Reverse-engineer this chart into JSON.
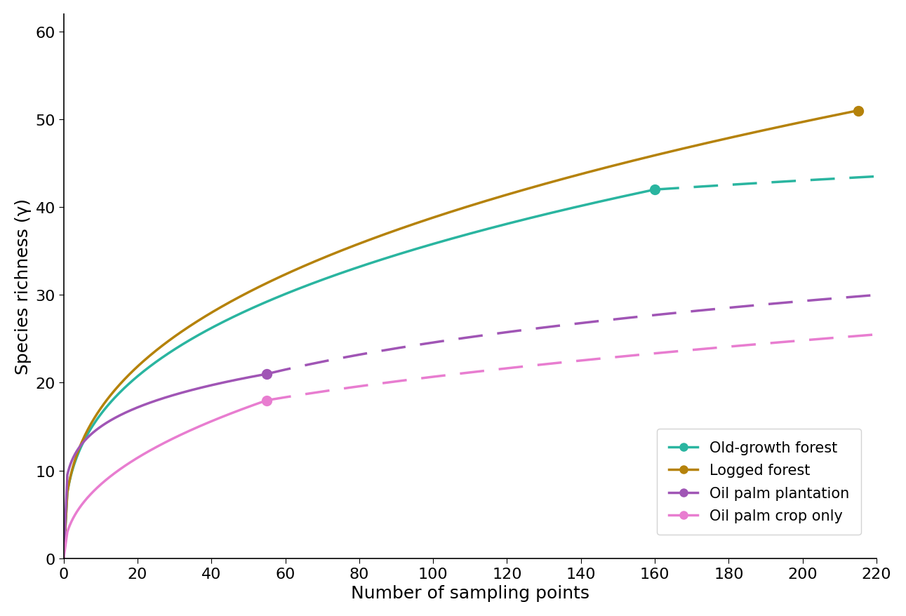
{
  "title": "",
  "xlabel": "Number of sampling points",
  "ylabel": "Species richness (γ)",
  "xlim": [
    0,
    220
  ],
  "ylim": [
    0,
    62
  ],
  "xticks": [
    0,
    20,
    40,
    60,
    80,
    100,
    120,
    140,
    160,
    180,
    200,
    220
  ],
  "yticks": [
    0,
    10,
    20,
    30,
    40,
    50,
    60
  ],
  "series": [
    {
      "label": "Old-growth forest",
      "color": "#2ab5a0",
      "obs_x": 160,
      "obs_y": 42,
      "x0": 1,
      "y0": 7.5,
      "ext_x": 220,
      "ext_y": 43.5,
      "solid_end": 160,
      "dashed": true
    },
    {
      "label": "Logged forest",
      "color": "#b5820a",
      "obs_x": 215,
      "obs_y": 51,
      "x0": 1,
      "y0": 7.5,
      "ext_x": null,
      "ext_y": null,
      "solid_end": 215,
      "dashed": false
    },
    {
      "label": "Oil palm plantation",
      "color": "#a055b5",
      "obs_x": 55,
      "obs_y": 21,
      "x0": 1,
      "y0": 9.5,
      "ext_x": 220,
      "ext_y": 30,
      "solid_end": 55,
      "dashed": true
    },
    {
      "label": "Oil palm crop only",
      "color": "#e87dd0",
      "obs_x": 55,
      "obs_y": 18,
      "x0": 1,
      "y0": 3.0,
      "ext_x": 220,
      "ext_y": 25.5,
      "solid_end": 55,
      "dashed": true
    }
  ],
  "figsize": [
    12.91,
    8.79
  ],
  "dpi": 100,
  "axis_label_fontsize": 18,
  "tick_fontsize": 16,
  "legend_fontsize": 15,
  "linewidth": 2.5,
  "markersize": 10
}
